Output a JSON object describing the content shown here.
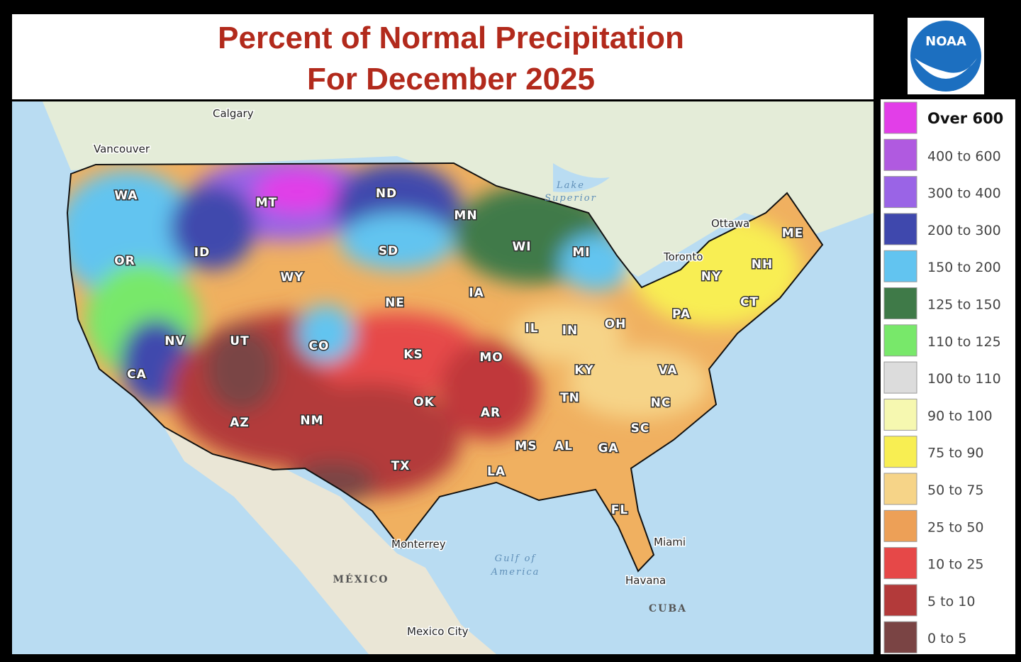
{
  "header": {
    "title": [
      "Percent of Normal Precipitation",
      "For December 2025"
    ],
    "logo": "NOAA"
  },
  "legend": [
    {
      "label": "Over 600",
      "color": "#e23ee8"
    },
    {
      "label": "400 to 600",
      "color": "#b05ae0"
    },
    {
      "label": "300 to 400",
      "color": "#9a64e6"
    },
    {
      "label": "200 to 300",
      "color": "#3f48ad"
    },
    {
      "label": "150 to 200",
      "color": "#62c4f0"
    },
    {
      "label": "125 to 150",
      "color": "#3f7a48"
    },
    {
      "label": "110 to 125",
      "color": "#78e86a"
    },
    {
      "label": "100 to 110",
      "color": "#dcdcdc"
    },
    {
      "label": "90 to 100",
      "color": "#f6f8b0"
    },
    {
      "label": "75 to 90",
      "color": "#f8ee52"
    },
    {
      "label": "50 to 75",
      "color": "#f6d488"
    },
    {
      "label": "25 to 50",
      "color": "#eda057"
    },
    {
      "label": "10 to 25",
      "color": "#e64848"
    },
    {
      "label": "5 to 10",
      "color": "#b33a3a"
    },
    {
      "label": "0 to 5",
      "color": "#7a4444"
    }
  ],
  "states": [
    "WA",
    "MT",
    "ND",
    "MN",
    "OR",
    "ID",
    "SD",
    "WI",
    "MI",
    "WY",
    "NE",
    "IA",
    "NV",
    "UT",
    "CO",
    "KS",
    "MO",
    "IL",
    "IN",
    "OH",
    "PA",
    "NY",
    "ME",
    "NH",
    "CT",
    "KY",
    "VA",
    "CA",
    "AZ",
    "NM",
    "OK",
    "AR",
    "TN",
    "NC",
    "SC",
    "MS",
    "AL",
    "GA",
    "TX",
    "LA",
    "FL"
  ],
  "places": [
    "Calgary",
    "Vancouver",
    "Ottawa",
    "Toronto",
    "Miami",
    "Havana",
    "Monterrey",
    "Mexico City"
  ],
  "water": [
    "Lake",
    "Superior",
    "Gulf of",
    "America"
  ],
  "countries": [
    "MÉXICO",
    "CUBA"
  ]
}
